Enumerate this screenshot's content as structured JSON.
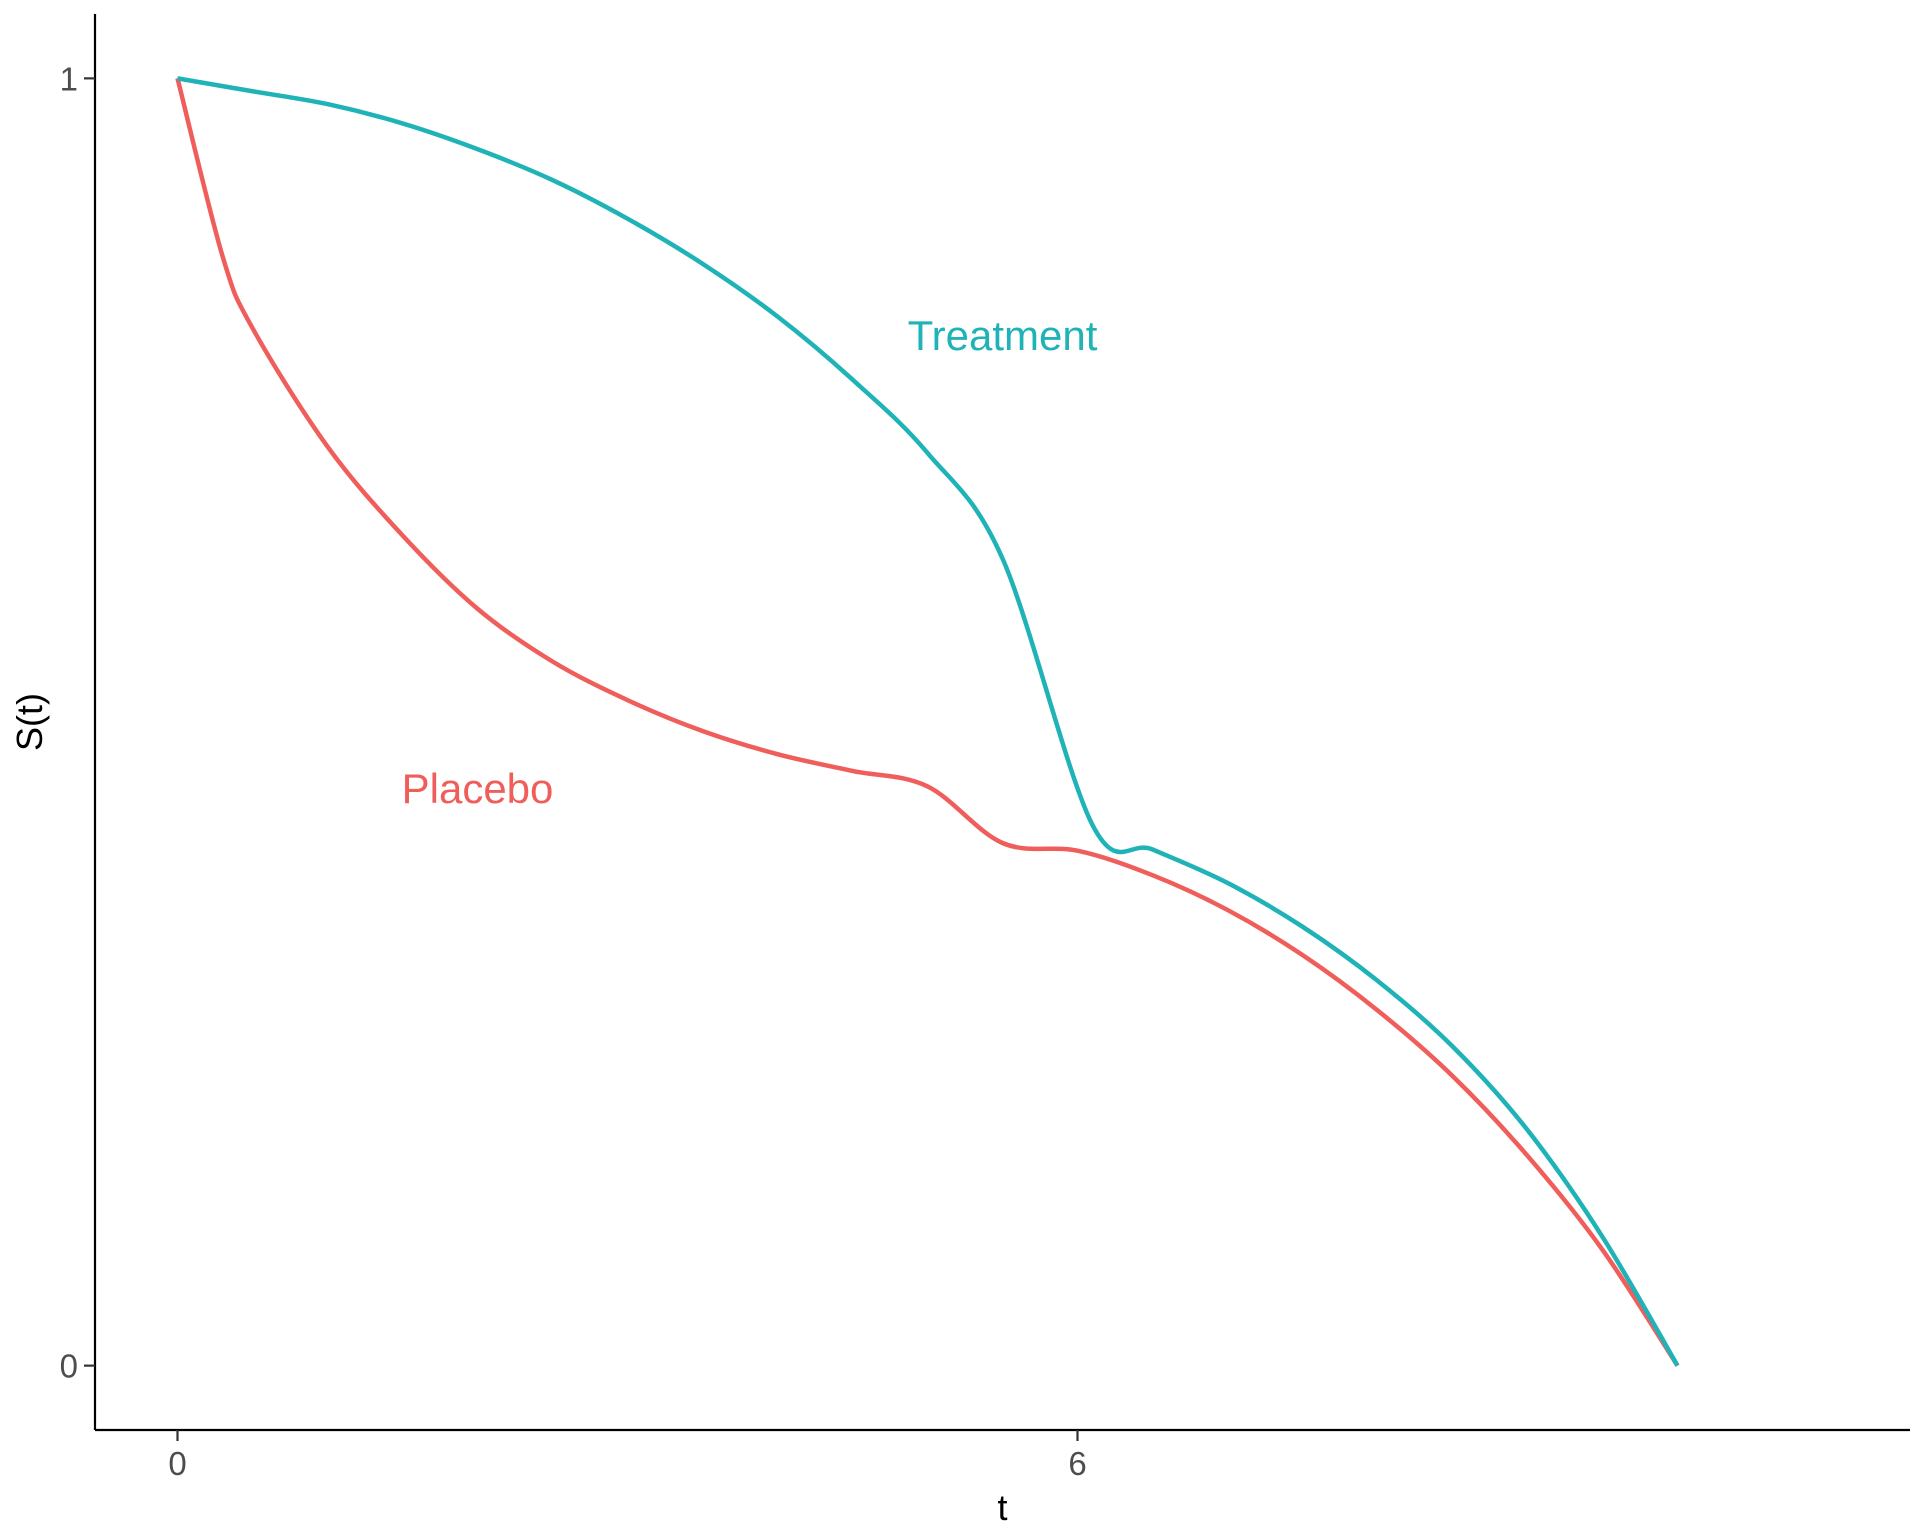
{
  "chart_data": {
    "type": "line",
    "title": "",
    "xlabel": "t",
    "ylabel": "S(t)",
    "xlim": [
      -0.55,
      11.55
    ],
    "ylim": [
      -0.05,
      1.05
    ],
    "x_ticks": [
      {
        "value": 0,
        "label": "0"
      },
      {
        "value": 6,
        "label": "6"
      }
    ],
    "y_ticks": [
      {
        "value": 0,
        "label": "0"
      },
      {
        "value": 1,
        "label": "1"
      }
    ],
    "grid": false,
    "legend": "none",
    "series": [
      {
        "name": "Treatment",
        "color": "#1FB3B8",
        "x": [
          0,
          0.5,
          1,
          1.5,
          2,
          2.5,
          3,
          3.5,
          4,
          4.5,
          5,
          5.5,
          6.1,
          6.5,
          7,
          7.5,
          8,
          8.5,
          9,
          9.5,
          10
        ],
        "y": [
          1.0,
          0.99,
          0.98,
          0.965,
          0.945,
          0.921,
          0.891,
          0.856,
          0.815,
          0.766,
          0.709,
          0.627,
          0.42,
          0.401,
          0.375,
          0.341,
          0.299,
          0.248,
          0.183,
          0.1,
          0.0
        ]
      },
      {
        "name": "Placebo",
        "color": "#F05E5C",
        "x": [
          0,
          0.3,
          0.5,
          1,
          1.5,
          2,
          2.5,
          3,
          3.5,
          4,
          4.5,
          5,
          5.5,
          6,
          6.5,
          7,
          7.5,
          8,
          8.5,
          9,
          9.5,
          10
        ],
        "y": [
          1.0,
          0.862,
          0.806,
          0.714,
          0.645,
          0.588,
          0.547,
          0.517,
          0.493,
          0.475,
          0.462,
          0.45,
          0.406,
          0.4,
          0.381,
          0.354,
          0.319,
          0.276,
          0.225,
          0.163,
          0.09,
          0.0
        ]
      }
    ],
    "annotations": [
      {
        "text": "Treatment",
        "x": 5.5,
        "y": 0.8,
        "color": "#1FB3B8"
      },
      {
        "text": "Placebo",
        "x": 2.0,
        "y": 0.448,
        "color": "#F05E5C"
      }
    ]
  }
}
